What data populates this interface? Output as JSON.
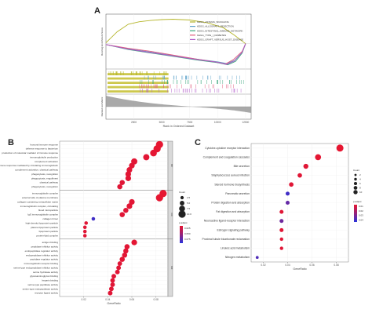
{
  "panels": {
    "a": "A",
    "b": "B",
    "c": "C"
  },
  "chart_data": [
    {
      "type": "line",
      "panel": "A",
      "series": [
        {
          "name": "KEGG_ASTHMA_SIGNALING",
          "color": "#b5b52a",
          "points": [
            [
              0,
              0.02
            ],
            [
              1000,
              0.28
            ],
            [
              2000,
              0.46
            ],
            [
              3000,
              0.52
            ],
            [
              4000,
              0.55
            ],
            [
              5000,
              0.57
            ],
            [
              6000,
              0.58
            ],
            [
              7500,
              0.56
            ],
            [
              9000,
              0.5
            ],
            [
              10500,
              0.38
            ],
            [
              11500,
              0.2
            ],
            [
              12500,
              0.0
            ]
          ]
        },
        {
          "name": "KEGG_ALLOGRAFT_REJECTION",
          "color": "#5aa0c8",
          "points": [
            [
              0,
              -0.02
            ],
            [
              2000,
              -0.12
            ],
            [
              4000,
              -0.2
            ],
            [
              6000,
              -0.28
            ],
            [
              8000,
              -0.36
            ],
            [
              10000,
              -0.43
            ],
            [
              10800,
              -0.47
            ],
            [
              11500,
              -0.4
            ],
            [
              12200,
              -0.2
            ],
            [
              12500,
              0.0
            ]
          ]
        },
        {
          "name": "KEGG_INTESTINAL_IMMUNE_NETWORK",
          "color": "#3aa67d",
          "points": [
            [
              0,
              -0.02
            ],
            [
              2000,
              -0.14
            ],
            [
              4000,
              -0.22
            ],
            [
              6000,
              -0.3
            ],
            [
              8000,
              -0.38
            ],
            [
              10000,
              -0.45
            ],
            [
              10900,
              -0.5
            ],
            [
              11600,
              -0.42
            ],
            [
              12200,
              -0.22
            ],
            [
              12500,
              0.0
            ]
          ]
        },
        {
          "name": "KEGG_TYPE_I_DIABETES",
          "color": "#e05a7c",
          "points": [
            [
              0,
              -0.02
            ],
            [
              2000,
              -0.11
            ],
            [
              4000,
              -0.18
            ],
            [
              6000,
              -0.27
            ],
            [
              8000,
              -0.36
            ],
            [
              10000,
              -0.44
            ],
            [
              10700,
              -0.48
            ],
            [
              11400,
              -0.38
            ],
            [
              12200,
              -0.18
            ],
            [
              12500,
              0.0
            ]
          ]
        },
        {
          "name": "KEGG_GRAFT_VERSUS_HOST_DISEASE",
          "color": "#b058c8",
          "points": [
            [
              0,
              -0.02
            ],
            [
              2000,
              -0.13
            ],
            [
              4000,
              -0.21
            ],
            [
              6000,
              -0.29
            ],
            [
              8000,
              -0.37
            ],
            [
              10000,
              -0.44
            ],
            [
              10800,
              -0.49
            ],
            [
              11500,
              -0.41
            ],
            [
              12200,
              -0.2
            ],
            [
              12500,
              0.0
            ]
          ]
        }
      ],
      "xticks": [
        "2500",
        "5000",
        "7500",
        "10000",
        "12500"
      ],
      "xlabel": "Rank in Ordered Dataset",
      "ylabel_top": "Running Enrichment Score",
      "ylabel_bottom": "Ranked List Metric",
      "xlim": [
        0,
        13000
      ],
      "ylim": [
        -0.6,
        0.7
      ]
    },
    {
      "type": "scatter",
      "panel": "B",
      "xlabel": "GeneRatio",
      "xticks": [
        "0.02",
        "0.04",
        "0.06",
        "0.08"
      ],
      "xlim": [
        0.0,
        0.09
      ],
      "groups": [
        {
          "name": "BP",
          "items": [
            {
              "term": "humoral immune response",
              "ratio": 0.083,
              "count": 10,
              "p": 0.95
            },
            {
              "term": "defense response to bacterium",
              "ratio": 0.081,
              "count": 10,
              "p": 0.95
            },
            {
              "term": "production of molecular mediator of immune response",
              "ratio": 0.078,
              "count": 9,
              "p": 0.94
            },
            {
              "term": "immunoglobulin production",
              "ratio": 0.072,
              "count": 8,
              "p": 0.93
            },
            {
              "term": "complement activation",
              "ratio": 0.062,
              "count": 8,
              "p": 0.93
            },
            {
              "term": "humoral immune response mediated by circulating immunoglobulin",
              "ratio": 0.06,
              "count": 7,
              "p": 0.93
            },
            {
              "term": "complement activation, classical pathway",
              "ratio": 0.058,
              "count": 7,
              "p": 0.93
            },
            {
              "term": "phagocytosis, recognition",
              "ratio": 0.057,
              "count": 7,
              "p": 0.93
            },
            {
              "term": "phagocytosis, engulfment",
              "ratio": 0.057,
              "count": 7,
              "p": 0.93
            },
            {
              "term": "classical pathway",
              "ratio": 0.052,
              "count": 6,
              "p": 0.92
            },
            {
              "term": "phagocytosis, recognition ",
              "ratio": 0.05,
              "count": 6,
              "p": 0.92
            }
          ]
        },
        {
          "name": "CC",
          "items": [
            {
              "term": "immunoglobulin complex",
              "ratio": 0.086,
              "count": 10,
              "p": 0.95
            },
            {
              "term": "external side of plasma membrane",
              "ratio": 0.083,
              "count": 10,
              "p": 0.95
            },
            {
              "term": "collagen-containing extracellular matrix",
              "ratio": 0.06,
              "count": 7,
              "p": 0.93
            },
            {
              "term": "immunoglobulin complex, circulating",
              "ratio": 0.058,
              "count": 7,
              "p": 0.93
            },
            {
              "term": "blood microparticle",
              "ratio": 0.055,
              "count": 6,
              "p": 0.92
            },
            {
              "term": "IgG immunoglobulin complex",
              "ratio": 0.052,
              "count": 6,
              "p": 0.92
            },
            {
              "term": "collagen trimer",
              "ratio": 0.028,
              "count": 3,
              "p": 0.12
            },
            {
              "term": "high-density lipoprotein particle",
              "ratio": 0.022,
              "count": 3,
              "p": 0.92
            },
            {
              "term": "plasma lipoprotein particle",
              "ratio": 0.021,
              "count": 3,
              "p": 0.92
            },
            {
              "term": "lipoprotein particle",
              "ratio": 0.021,
              "count": 3,
              "p": 0.92
            },
            {
              "term": "protein-lipid complex",
              "ratio": 0.021,
              "count": 3,
              "p": 0.92
            }
          ]
        },
        {
          "name": "MF",
          "items": [
            {
              "term": "antigen binding",
              "ratio": 0.062,
              "count": 7,
              "p": 0.94
            },
            {
              "term": "peptidase inhibitor activity",
              "ratio": 0.056,
              "count": 6,
              "p": 0.93
            },
            {
              "term": "endopeptidase regulator activity",
              "ratio": 0.055,
              "count": 6,
              "p": 0.93
            },
            {
              "term": "endopeptidase inhibitor activity",
              "ratio": 0.054,
              "count": 6,
              "p": 0.93
            },
            {
              "term": "peptidase regulator activity",
              "ratio": 0.052,
              "count": 6,
              "p": 0.93
            },
            {
              "term": "immunoglobulin receptor binding",
              "ratio": 0.05,
              "count": 5,
              "p": 0.92
            },
            {
              "term": "serine-type endopeptidase inhibitor activity",
              "ratio": 0.049,
              "count": 5,
              "p": 0.92
            },
            {
              "term": "serine hydrolase activity",
              "ratio": 0.048,
              "count": 5,
              "p": 0.92
            },
            {
              "term": "glycosaminoglycan binding",
              "ratio": 0.045,
              "count": 5,
              "p": 0.92
            },
            {
              "term": "heparin binding",
              "ratio": 0.044,
              "count": 5,
              "p": 0.92
            },
            {
              "term": "serine-type peptidase activity",
              "ratio": 0.044,
              "count": 5,
              "p": 0.92
            },
            {
              "term": "serine-type endopeptidase activity",
              "ratio": 0.043,
              "count": 5,
              "p": 0.92
            },
            {
              "term": "receptor ligand activity",
              "ratio": 0.042,
              "count": 5,
              "p": 0.92
            }
          ]
        }
      ],
      "legend_count": {
        "title": "Count",
        "values": [
          "2.5",
          "5.0",
          "7.5",
          "10.0"
        ]
      },
      "legend_color": {
        "title": "p.adjust",
        "ticks": [
          "0.025",
          "0.050",
          "0.075"
        ]
      }
    },
    {
      "type": "scatter",
      "panel": "C",
      "xlabel": "GeneRatio",
      "xticks": [
        "0.02",
        "0.04",
        "0.06",
        "0.08"
      ],
      "xlim": [
        0.01,
        0.09
      ],
      "items": [
        {
          "term": "Cytokine-cytokine receptor interaction",
          "ratio": 0.083,
          "count": 10,
          "p": 0.95
        },
        {
          "term": "Complement and coagulation cascades",
          "ratio": 0.065,
          "count": 8,
          "p": 0.94
        },
        {
          "term": "Bile secretion",
          "ratio": 0.055,
          "count": 6,
          "p": 0.92
        },
        {
          "term": "Staphylococcus aureus infection",
          "ratio": 0.05,
          "count": 5,
          "p": 0.92
        },
        {
          "term": "Steroid hormone biosynthesis",
          "ratio": 0.043,
          "count": 5,
          "p": 0.92
        },
        {
          "term": "Pancreatic secretion",
          "ratio": 0.04,
          "count": 4,
          "p": 0.12
        },
        {
          "term": "Protein digestion and absorption",
          "ratio": 0.04,
          "count": 4,
          "p": 0.3
        },
        {
          "term": "Fat digestion and absorption",
          "ratio": 0.035,
          "count": 4,
          "p": 0.92
        },
        {
          "term": "Neuroactive ligand-receptor interaction",
          "ratio": 0.035,
          "count": 4,
          "p": 0.35
        },
        {
          "term": "Estrogen signaling pathway",
          "ratio": 0.035,
          "count": 4,
          "p": 0.92
        },
        {
          "term": "Proximal tubule bicarbonate reclamation",
          "ratio": 0.035,
          "count": 3,
          "p": 0.92
        },
        {
          "term": "Linoleic acid metabolism",
          "ratio": 0.035,
          "count": 3,
          "p": 0.92
        },
        {
          "term": "Nitrogen metabolism",
          "ratio": 0.015,
          "count": 2,
          "p": 0.2
        }
      ],
      "legend_count": {
        "title": "Count",
        "values": [
          "2",
          "4",
          "6",
          "8",
          "10"
        ]
      },
      "legend_color": {
        "title": "p.adjust",
        "ticks": [
          "0.01",
          "0.02",
          "0.03",
          "0.04"
        ]
      }
    }
  ]
}
